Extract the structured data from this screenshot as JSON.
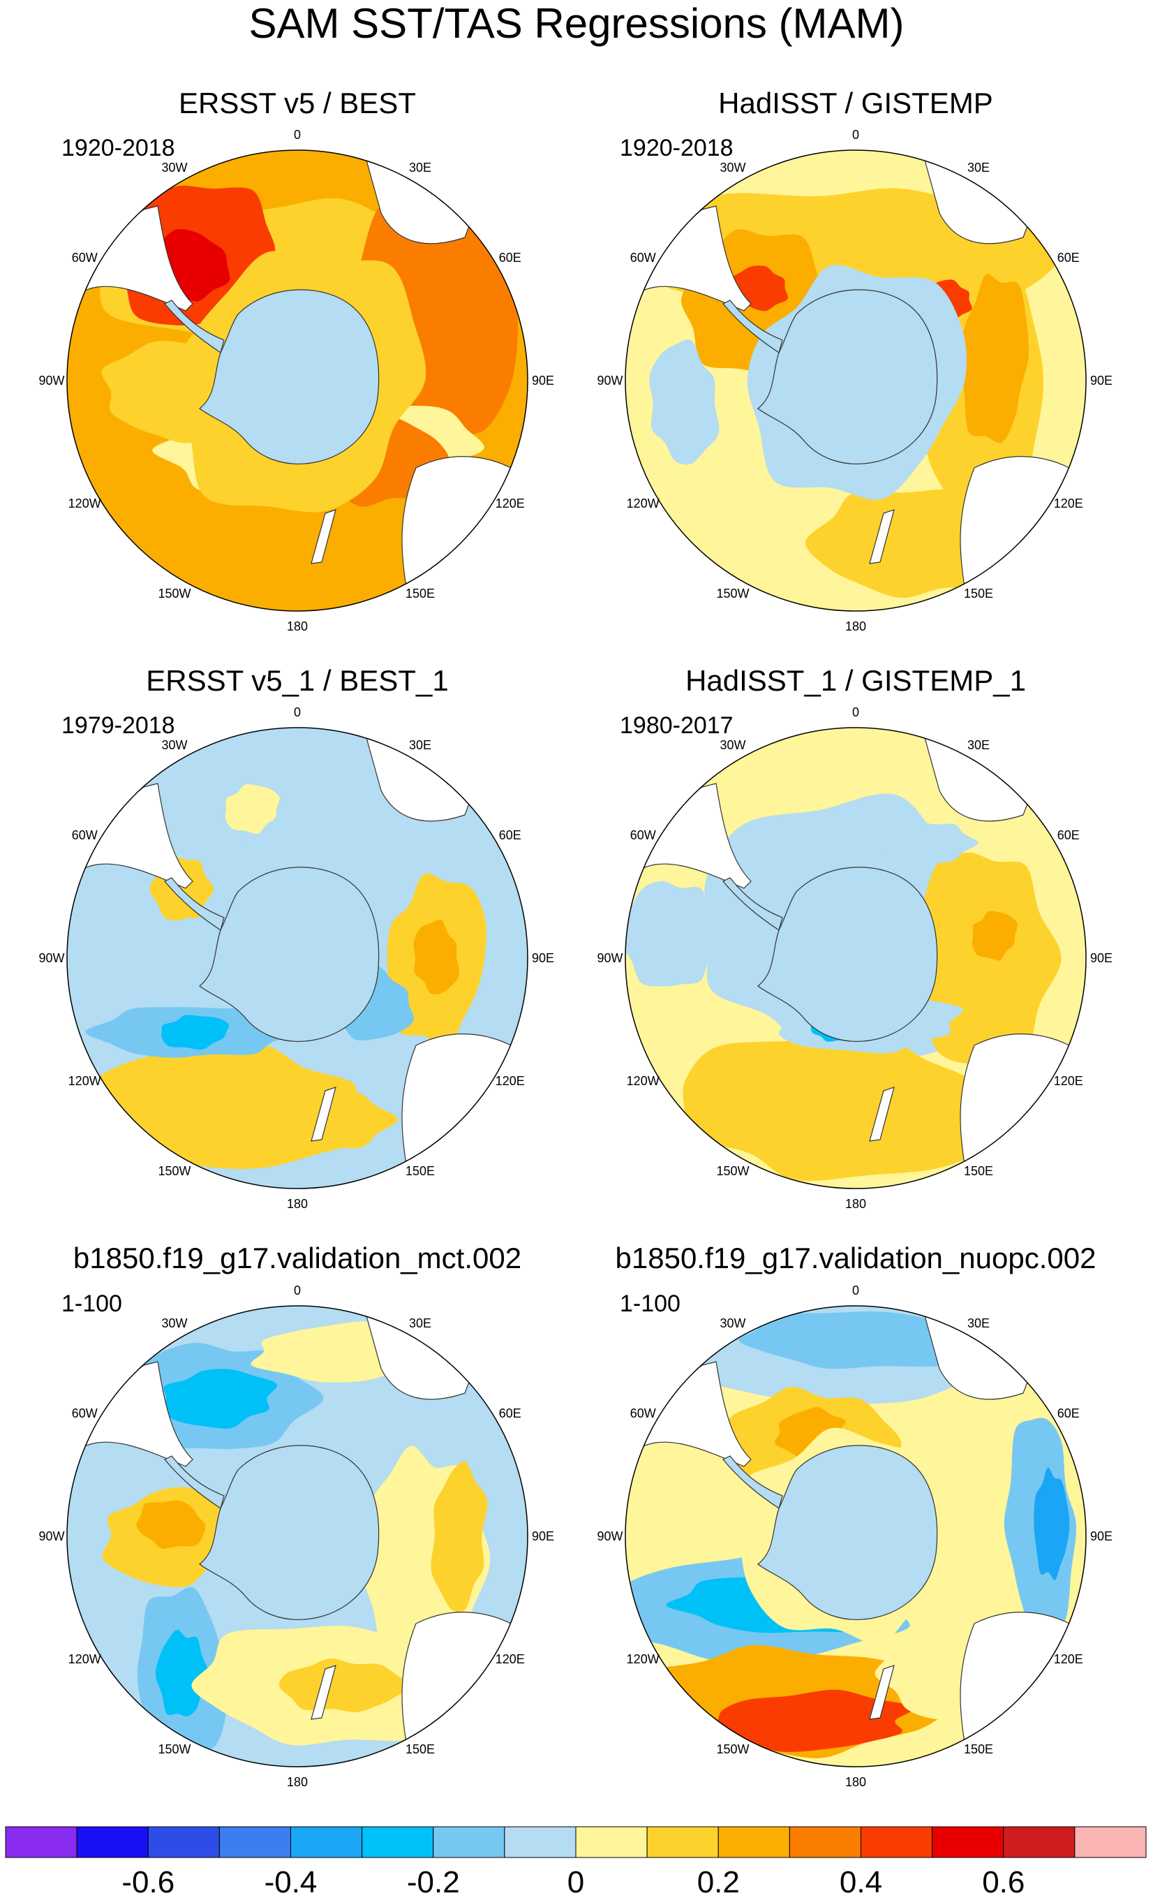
{
  "figure": {
    "title": "SAM SST/TAS Regressions (MAM)",
    "lon_labels": [
      "0",
      "30E",
      "60E",
      "90E",
      "120E",
      "150E",
      "180",
      "150W",
      "120W",
      "90W",
      "60W",
      "30W"
    ]
  },
  "panels": [
    {
      "title": "ERSST v5 / BEST",
      "period": "1920-2018",
      "regime": "warm"
    },
    {
      "title": "HadISST / GISTEMP",
      "period": "1920-2018",
      "regime": "mild"
    },
    {
      "title": "ERSST v5_1 / BEST_1",
      "period": "1979-2018",
      "regime": "cool"
    },
    {
      "title": "HadISST_1 / GISTEMP_1",
      "period": "1980-2017",
      "regime": "mixed"
    },
    {
      "title": "b1850.f19_g17.validation_mct.002",
      "period": "1-100",
      "regime": "model_a"
    },
    {
      "title": "b1850.f19_g17.validation_nuopc.002",
      "period": "1-100",
      "regime": "model_b"
    }
  ],
  "colorbar": {
    "labels": [
      "-0.6",
      "-0.4",
      "-0.2",
      "0",
      "0.2",
      "0.4",
      "0.6"
    ],
    "colors": [
      "#8a2bf0",
      "#1a10f5",
      "#2e4de8",
      "#3a7ef0",
      "#1aa6f5",
      "#00c0f8",
      "#76c8f2",
      "#b4dcf2",
      "#fff59a",
      "#fdd22c",
      "#fbae00",
      "#fa7d00",
      "#fa3c00",
      "#e80000",
      "#d01c1c",
      "#fbb4b4"
    ]
  },
  "colors": {
    "land": "#ffffff",
    "coast": "#333333",
    "antarctica": "#b4dcf2"
  }
}
